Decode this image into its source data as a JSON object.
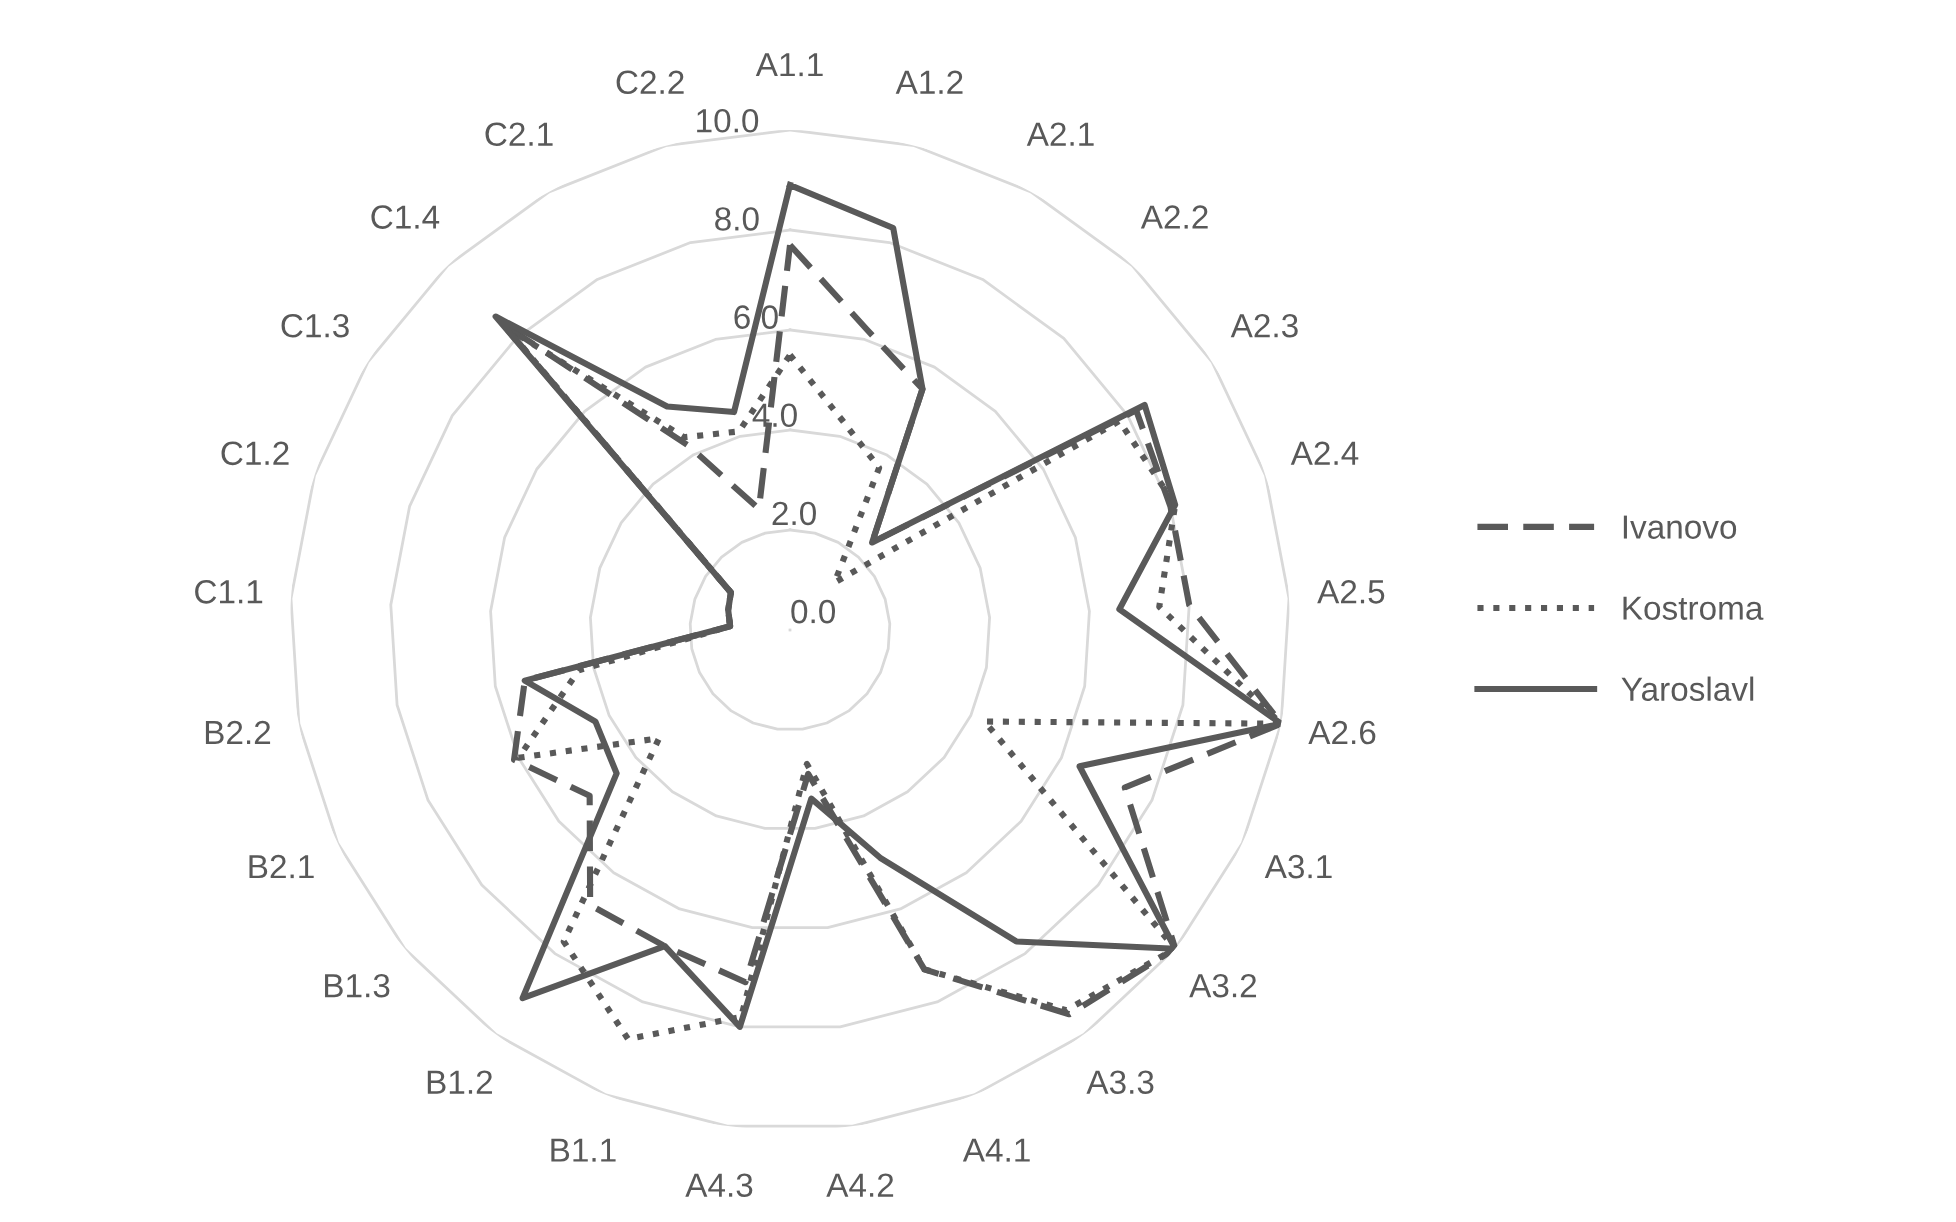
{
  "chart_data": {
    "type": "radar",
    "categories": [
      "A1.1",
      "A1.2",
      "A2.1",
      "A2.2",
      "A2.3",
      "A2.4",
      "A2.5",
      "A2.6",
      "A3.1",
      "A3.2",
      "A3.3",
      "A4.1",
      "A4.2",
      "A4.3",
      "B1.1",
      "B1.2",
      "B1.3",
      "B2.1",
      "B2.2",
      "C1.1",
      "C1.2",
      "C1.3",
      "C1.4",
      "C2.1",
      "C2.2"
    ],
    "series": [
      {
        "name": "Ivanovo",
        "color": "#595959",
        "line_style": "dashed",
        "values": [
          7.7,
          6.2,
          5.5,
          2.4,
          8.2,
          8.0,
          8.0,
          10.0,
          7.4,
          10.0,
          9.5,
          7.3,
          2.9,
          7.1,
          6.8,
          6.8,
          5.2,
          6.1,
          5.4,
          1.2,
          1.3,
          1.4,
          8.4,
          4.2,
          2.5
        ]
      },
      {
        "name": "Kostroma",
        "color": "#595959",
        "line_style": "dotted",
        "values": [
          5.5,
          4.3,
          3.7,
          1.3,
          7.8,
          8.1,
          7.4,
          10.0,
          4.3,
          10.0,
          9.4,
          7.3,
          2.7,
          7.8,
          8.8,
          7.7,
          3.4,
          6.0,
          4.3,
          1.2,
          1.3,
          1.4,
          8.3,
          4.4,
          4.1
        ]
      },
      {
        "name": "Yaroslavl",
        "color": "#595959",
        "line_style": "solid",
        "values": [
          8.9,
          8.3,
          5.5,
          2.4,
          8.4,
          8.1,
          6.6,
          10.0,
          6.4,
          10.0,
          7.7,
          4.9,
          3.4,
          8.0,
          6.8,
          9.1,
          4.5,
          4.3,
          5.4,
          1.2,
          1.3,
          1.4,
          8.6,
          5.1,
          4.5
        ]
      }
    ],
    "ylim": [
      0,
      10
    ],
    "yticks": [
      {
        "value": 0,
        "label": "0.0"
      },
      {
        "value": 2,
        "label": "2.0"
      },
      {
        "value": 4,
        "label": "4.0"
      },
      {
        "value": 6,
        "label": "6.0"
      },
      {
        "value": 8,
        "label": "8.0"
      },
      {
        "value": 10,
        "label": "10.0"
      }
    ],
    "grid": true,
    "legend": "right",
    "marker": "none"
  }
}
